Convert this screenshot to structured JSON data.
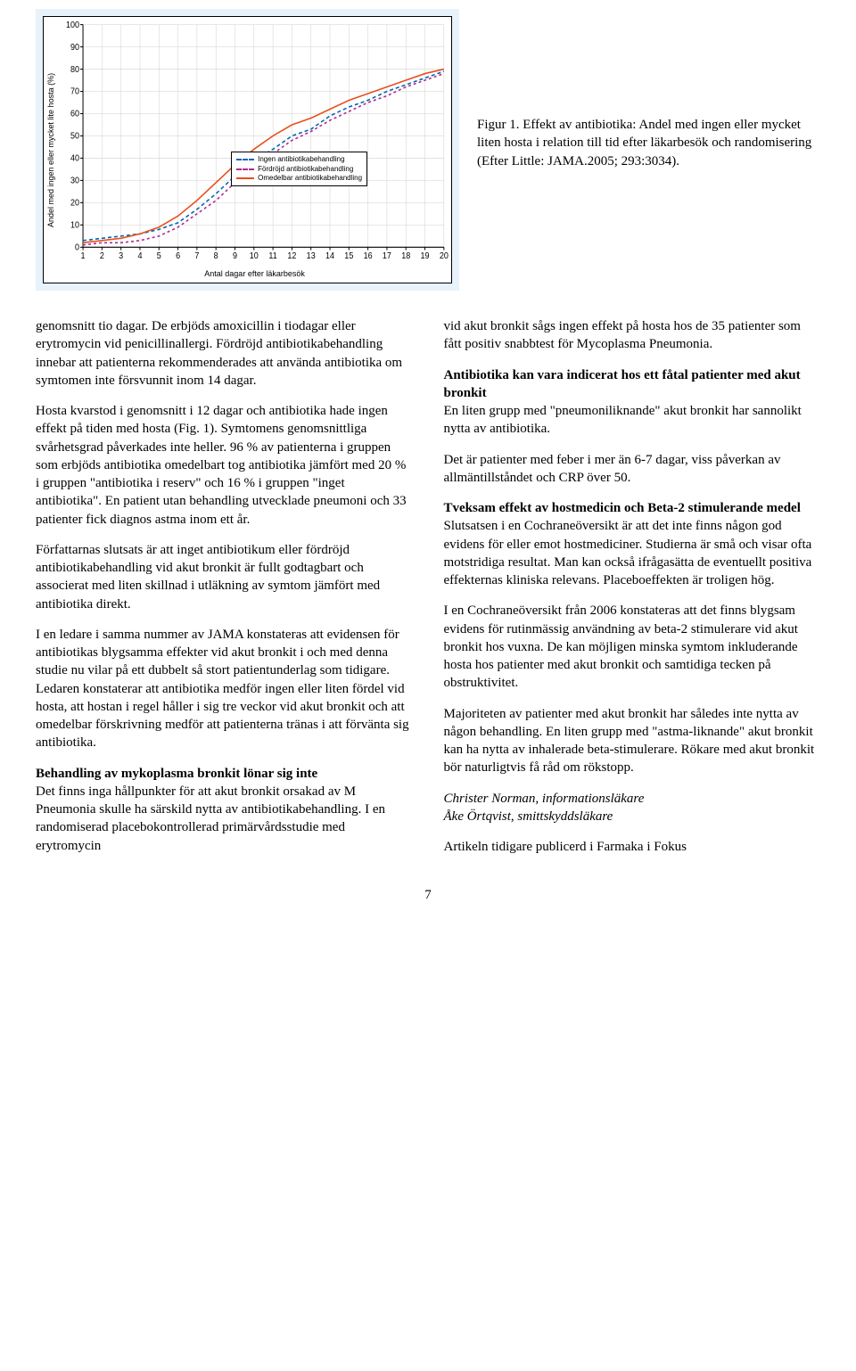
{
  "chart": {
    "type": "line",
    "ylabel": "Andel med ingen eller mycket lite hosta (%)",
    "xlabel": "Antal dagar efter läkarbesök",
    "ylim": [
      0,
      100
    ],
    "ytick_step": 10,
    "xlim": [
      1,
      20
    ],
    "background": "#e8f2fa",
    "plot_bg": "#ffffff",
    "grid_color": "#d0d0d0",
    "axis_color": "#000000",
    "tick_fontsize": 9,
    "series": [
      {
        "name": "Ingen antibiotikabehandling",
        "color": "#0066b3",
        "dash": "4,3",
        "width": 1.5,
        "y": [
          3,
          4,
          5,
          6,
          8,
          11,
          17,
          24,
          32,
          39,
          44,
          50,
          53,
          59,
          63,
          66,
          70,
          73,
          76,
          79
        ]
      },
      {
        "name": "Fördröjd antibiotikabehandling",
        "color": "#b02a8f",
        "dash": "3,3",
        "width": 1.5,
        "y": [
          1,
          2,
          2,
          3,
          5,
          9,
          15,
          21,
          29,
          36,
          42,
          48,
          52,
          57,
          61,
          65,
          68,
          72,
          75,
          78
        ]
      },
      {
        "name": "Omedelbar antibiotikabehandling",
        "color": "#e94e1b",
        "dash": "",
        "width": 1.5,
        "y": [
          2,
          3,
          4,
          6,
          9,
          14,
          21,
          29,
          37,
          44,
          50,
          55,
          58,
          62,
          66,
          69,
          72,
          75,
          78,
          80
        ]
      }
    ],
    "legend": [
      "Ingen antibiotikabehandling",
      "Fördröjd antibiotikabehandling",
      "Omedelbar antibiotikabehandling"
    ]
  },
  "caption": "Figur 1. Effekt av antibiotika: Andel med ingen eller mycket liten hosta i relation till tid efter läkarbesök och randomisering  (Efter Little: JAMA.2005; 293:3034).",
  "col1": {
    "p1": "genomsnitt tio dagar. De erbjöds amoxicillin i tiodagar eller erytromycin vid penicillinallergi. Fördröjd antibiotikabehandling innebar att patienterna rekommenderades att använda antibiotika om symtomen inte försvunnit inom 14 dagar.",
    "p2": "Hosta kvarstod i genomsnitt i 12 dagar och antibiotika hade ingen effekt på tiden med hosta (Fig. 1). Symtomens genomsnittliga svårhetsgrad påverkades inte heller. 96 % av patienterna i gruppen som erbjöds antibiotika omedelbart tog antibiotika jämfört med 20 % i gruppen \"antibiotika i reserv\" och 16 % i gruppen \"inget antibiotika\". En patient utan behandling utvecklade pneumoni och 33 patienter fick diagnos astma inom ett år.",
    "p3": "Författarnas slutsats är att inget antibiotikum eller fördröjd antibiotikabehandling vid akut bronkit är fullt godtagbart och associerat med liten skillnad i utläkning av symtom jämfört med antibiotika direkt.",
    "p4": "I en ledare i samma nummer av JAMA konstateras att evidensen för antibiotikas blygsamma effekter vid akut bronkit i och med denna studie nu vilar på ett dubbelt så stort patientunderlag som tidigare. Ledaren konstaterar att antibiotika medför ingen eller liten fördel vid hosta, att hostan i regel håller i sig tre veckor vid akut bronkit och att omedelbar förskrivning medför att patienterna tränas i att förvänta sig antibiotika.",
    "h1": "Behandling av mykoplasma bronkit lönar sig inte",
    "p5": "Det finns inga hållpunkter för att akut bronkit orsakad av M Pneumonia skulle ha särskild nytta av antibiotikabehandling. I en randomiserad placebokontrollerad primärvårdsstudie med erytromycin"
  },
  "col2": {
    "p1": "vid akut bronkit sågs ingen effekt på hosta hos de 35 patienter som fått positiv snabbtest för Mycoplasma Pneumonia.",
    "h1": "Antibiotika kan vara indicerat hos ett fåtal patienter med akut bronkit",
    "p2": "En liten grupp med \"pneumoniliknande\" akut bronkit har sannolikt nytta av antibiotika.",
    "p3": "Det är patienter med feber i mer än 6-7 dagar, viss påverkan av allmäntillståndet och CRP över 50.",
    "h2": "Tveksam effekt av hostmedicin och Beta-2 stimulerande medel",
    "p4": "Slutsatsen i en Cochraneöversikt är att det inte finns någon god evidens för eller emot hostmediciner. Studierna är små och visar ofta motstridiga resultat. Man kan också ifrågasätta de eventuellt positiva effekternas kliniska relevans. Placeboeffekten är troligen hög.",
    "p5": "I en Cochraneöversikt från 2006  konstateras att det finns blygsam evidens för rutinmässig användning av beta-2 stimulerare vid akut bronkit hos vuxna. De kan möjligen minska symtom inkluderande hosta hos patienter med akut bronkit och samtidiga tecken på obstruktivitet.",
    "p6": "Majoriteten av patienter med akut bronkit har således inte nytta av någon behandling. En liten grupp med \"astma-liknande\" akut bronkit kan ha nytta av inhalerade beta-stimulerare. Rökare med akut bronkit bör naturligtvis få råd om rökstopp.",
    "sig1": "Christer Norman, informationsläkare",
    "sig2": "Åke Örtqvist, smittskyddsläkare",
    "footer": "Artikeln tidigare publicerd i Farmaka i Fokus"
  },
  "pagenum": "7"
}
